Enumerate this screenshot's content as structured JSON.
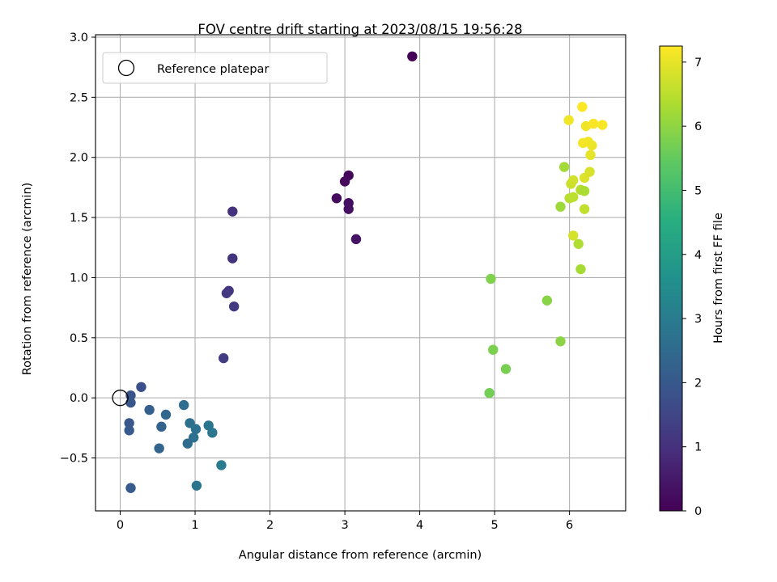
{
  "chart_data": {
    "type": "scatter",
    "title": "FOV centre drift starting at 2023/08/15 19:56:28",
    "xlabel": "Angular distance from reference (arcmin)",
    "ylabel": "Rotation from reference (arcmin)",
    "xlim": [
      -0.33,
      6.75
    ],
    "ylim": [
      -0.94,
      3.02
    ],
    "xticks": [
      0,
      1,
      2,
      3,
      4,
      5,
      6
    ],
    "yticks": [
      -0.5,
      0.0,
      0.5,
      1.0,
      1.5,
      2.0,
      2.5,
      3.0
    ],
    "ytick_labels": [
      "−0.5",
      "0.0",
      "0.5",
      "1.0",
      "1.5",
      "2.0",
      "2.5",
      "3.0"
    ],
    "grid": true,
    "legend": {
      "placement": "upper-left",
      "entries": [
        {
          "label": "Reference platepar",
          "marker": "open-circle"
        }
      ]
    },
    "reference_point": {
      "x": 0.0,
      "y": 0.0
    },
    "colorbar": {
      "label": "Hours from first FF file",
      "range": [
        0,
        7.25
      ],
      "ticks": [
        0,
        1,
        2,
        3,
        4,
        5,
        6,
        7
      ],
      "colormap": "viridis"
    },
    "points": [
      {
        "x": 3.9,
        "y": 2.84,
        "hours": 0.05
      },
      {
        "x": 3.05,
        "y": 1.85,
        "hours": 0.12
      },
      {
        "x": 3.0,
        "y": 1.8,
        "hours": 0.18
      },
      {
        "x": 2.89,
        "y": 1.66,
        "hours": 0.22
      },
      {
        "x": 3.05,
        "y": 1.62,
        "hours": 0.28
      },
      {
        "x": 3.05,
        "y": 1.57,
        "hours": 0.32
      },
      {
        "x": 3.15,
        "y": 1.32,
        "hours": 0.38
      },
      {
        "x": 1.5,
        "y": 1.55,
        "hours": 1.05
      },
      {
        "x": 1.5,
        "y": 1.16,
        "hours": 1.1
      },
      {
        "x": 1.45,
        "y": 0.89,
        "hours": 1.15
      },
      {
        "x": 1.42,
        "y": 0.87,
        "hours": 1.2
      },
      {
        "x": 1.52,
        "y": 0.76,
        "hours": 1.25
      },
      {
        "x": 1.38,
        "y": 0.33,
        "hours": 1.3
      },
      {
        "x": 0.28,
        "y": 0.09,
        "hours": 1.8
      },
      {
        "x": 0.14,
        "y": 0.02,
        "hours": 1.9
      },
      {
        "x": 0.14,
        "y": -0.04,
        "hours": 1.95
      },
      {
        "x": 0.12,
        "y": -0.21,
        "hours": 2.0
      },
      {
        "x": 0.12,
        "y": -0.27,
        "hours": 2.05
      },
      {
        "x": 0.14,
        "y": -0.75,
        "hours": 2.1
      },
      {
        "x": 0.39,
        "y": -0.1,
        "hours": 2.2
      },
      {
        "x": 0.55,
        "y": -0.24,
        "hours": 2.3
      },
      {
        "x": 0.61,
        "y": -0.14,
        "hours": 2.4
      },
      {
        "x": 0.52,
        "y": -0.42,
        "hours": 2.35
      },
      {
        "x": 0.85,
        "y": -0.06,
        "hours": 2.6
      },
      {
        "x": 0.93,
        "y": -0.21,
        "hours": 2.7
      },
      {
        "x": 1.01,
        "y": -0.26,
        "hours": 2.75
      },
      {
        "x": 0.98,
        "y": -0.33,
        "hours": 2.65
      },
      {
        "x": 0.9,
        "y": -0.38,
        "hours": 2.55
      },
      {
        "x": 1.18,
        "y": -0.23,
        "hours": 2.85
      },
      {
        "x": 1.23,
        "y": -0.29,
        "hours": 2.9
      },
      {
        "x": 1.02,
        "y": -0.73,
        "hours": 2.8
      },
      {
        "x": 1.35,
        "y": -0.56,
        "hours": 3.0
      },
      {
        "x": 4.95,
        "y": 0.99,
        "hours": 5.85
      },
      {
        "x": 4.98,
        "y": 0.4,
        "hours": 5.8
      },
      {
        "x": 5.15,
        "y": 0.24,
        "hours": 5.75
      },
      {
        "x": 4.93,
        "y": 0.04,
        "hours": 5.7
      },
      {
        "x": 5.7,
        "y": 0.81,
        "hours": 5.95
      },
      {
        "x": 5.88,
        "y": 0.47,
        "hours": 6.0
      },
      {
        "x": 6.15,
        "y": 1.07,
        "hours": 6.3
      },
      {
        "x": 6.12,
        "y": 1.28,
        "hours": 6.4
      },
      {
        "x": 6.05,
        "y": 1.35,
        "hours": 6.8
      },
      {
        "x": 5.88,
        "y": 1.59,
        "hours": 6.2
      },
      {
        "x": 6.2,
        "y": 1.57,
        "hours": 6.6
      },
      {
        "x": 6.0,
        "y": 1.66,
        "hours": 6.5
      },
      {
        "x": 6.05,
        "y": 1.67,
        "hours": 6.55
      },
      {
        "x": 6.15,
        "y": 1.73,
        "hours": 6.45
      },
      {
        "x": 6.2,
        "y": 1.72,
        "hours": 6.35
      },
      {
        "x": 6.02,
        "y": 1.78,
        "hours": 6.7
      },
      {
        "x": 6.05,
        "y": 1.81,
        "hours": 6.75
      },
      {
        "x": 6.2,
        "y": 1.83,
        "hours": 6.9
      },
      {
        "x": 6.27,
        "y": 1.88,
        "hours": 6.85
      },
      {
        "x": 5.93,
        "y": 1.92,
        "hours": 6.25
      },
      {
        "x": 6.28,
        "y": 2.02,
        "hours": 7.0
      },
      {
        "x": 6.3,
        "y": 2.1,
        "hours": 7.05
      },
      {
        "x": 6.25,
        "y": 2.13,
        "hours": 7.1
      },
      {
        "x": 6.18,
        "y": 2.12,
        "hours": 7.15
      },
      {
        "x": 6.22,
        "y": 2.26,
        "hours": 7.1
      },
      {
        "x": 6.32,
        "y": 2.28,
        "hours": 7.2
      },
      {
        "x": 6.44,
        "y": 2.27,
        "hours": 7.18
      },
      {
        "x": 5.99,
        "y": 2.31,
        "hours": 7.12
      },
      {
        "x": 6.17,
        "y": 2.42,
        "hours": 7.22
      }
    ]
  }
}
